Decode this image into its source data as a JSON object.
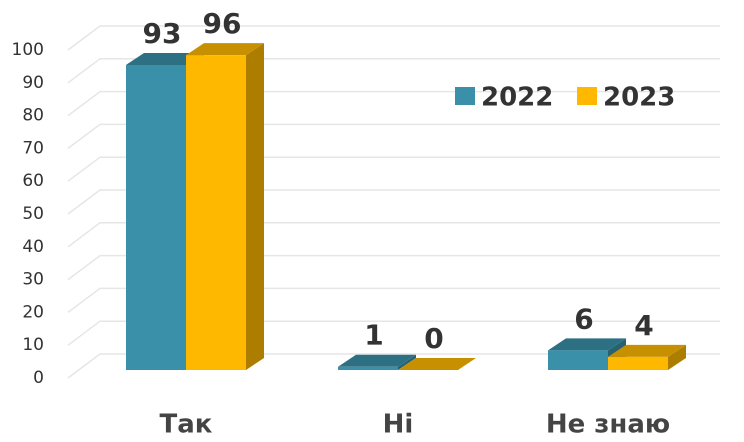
{
  "chart_data": {
    "type": "bar",
    "categories": [
      "Так",
      "Ні",
      "Не знаю"
    ],
    "series": [
      {
        "name": "2022",
        "color": "#3a90a8",
        "values": [
          93,
          1,
          6
        ]
      },
      {
        "name": "2023",
        "color": "#ffb800",
        "values": [
          96,
          0,
          4
        ]
      }
    ],
    "ylim": [
      0,
      100
    ],
    "yticks": [
      0,
      10,
      20,
      30,
      40,
      50,
      60,
      70,
      80,
      90,
      100
    ],
    "grid": true,
    "legend": "upper right"
  }
}
